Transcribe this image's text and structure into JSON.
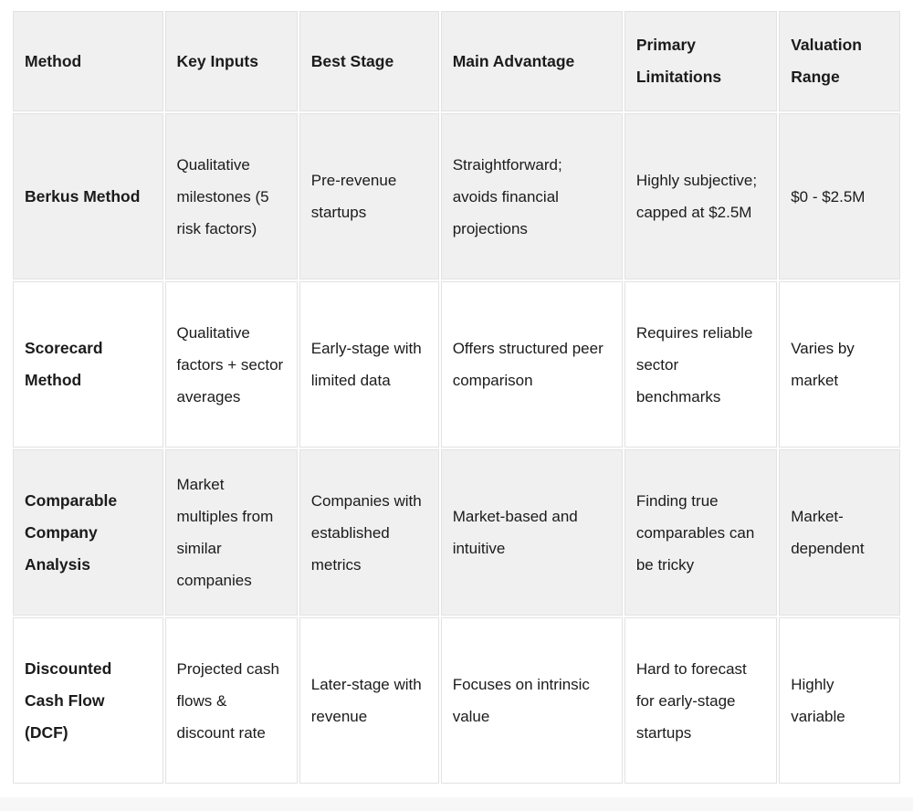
{
  "table": {
    "header": [
      "Method",
      "Key Inputs",
      "Best Stage",
      "Main Advantage",
      "Primary Limitations",
      "Valuation Range"
    ],
    "rows": [
      [
        "Berkus Method",
        "Qualitative milestones (5 risk factors)",
        "Pre-revenue startups",
        "Straightforward; avoids financial projections",
        "Highly subjective; capped at $2.5M",
        "$0 - $2.5M"
      ],
      [
        "Scorecard Method",
        "Qualitative factors + sector averages",
        "Early-stage with limited data",
        "Offers structured peer comparison",
        "Requires reliable sector benchmarks",
        "Varies by market"
      ],
      [
        "Comparable Company Analysis",
        "Market multiples from similar companies",
        "Companies with established metrics",
        "Market-based and intuitive",
        "Finding true comparables can be tricky",
        "Market-dependent"
      ],
      [
        "Discounted Cash Flow (DCF)",
        "Projected cash flows & discount rate",
        "Later-stage with revenue",
        "Focuses on intrinsic value",
        "Hard to forecast for early-stage startups",
        "Highly variable"
      ]
    ],
    "style": {
      "stripe_color": "#f0f0f1",
      "border_color": "#e2e2e2",
      "text_color": "#1b1b1b",
      "footer_strip_color": "#f7f7f7"
    }
  }
}
